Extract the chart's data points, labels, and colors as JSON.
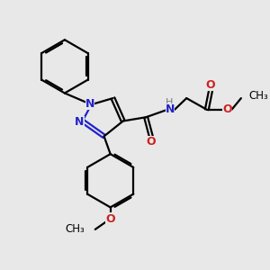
{
  "bg_color": "#e8e8e8",
  "bond_color": "#000000",
  "N_color": "#2222cc",
  "O_color": "#cc2222",
  "H_color": "#777777",
  "line_width": 1.6,
  "figsize": [
    3.0,
    3.0
  ],
  "dpi": 100,
  "xlim": [
    0,
    10
  ],
  "ylim": [
    0,
    10
  ]
}
